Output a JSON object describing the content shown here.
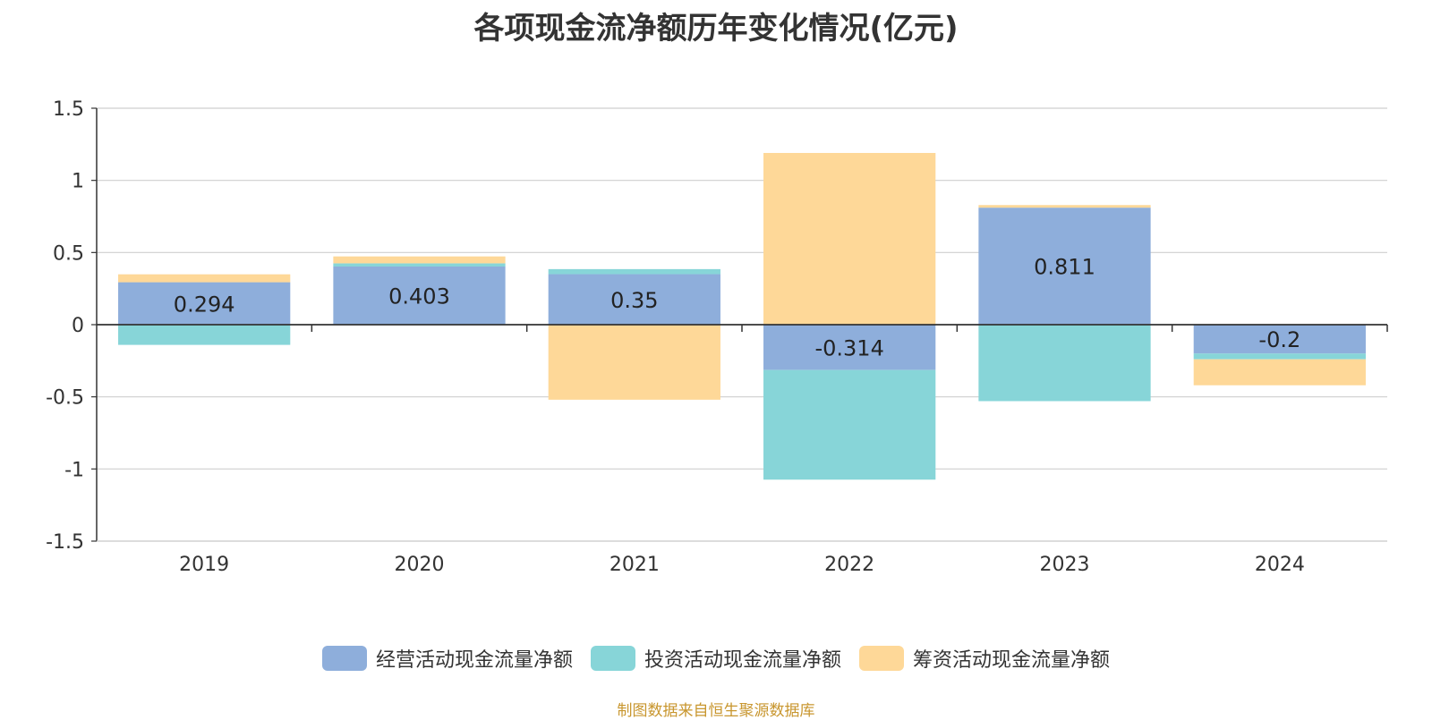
{
  "chart_data": {
    "type": "bar",
    "stacked": true,
    "title": "各项现金流净额历年变化情况(亿元)",
    "categories": [
      "2019",
      "2020",
      "2021",
      "2022",
      "2023",
      "2024"
    ],
    "series": [
      {
        "name": "经营活动现金流量净额",
        "color": "#8eaedb",
        "values": [
          0.294,
          0.403,
          0.35,
          -0.314,
          0.811,
          -0.2
        ]
      },
      {
        "name": "投资活动现金流量净额",
        "color": "#87d5d8",
        "values": [
          -0.14,
          0.022,
          0.035,
          -0.76,
          -0.53,
          -0.04
        ]
      },
      {
        "name": "筹资活动现金流量净额",
        "color": "#fed898",
        "values": [
          0.055,
          0.048,
          -0.52,
          1.19,
          0.018,
          -0.18
        ]
      }
    ],
    "data_labels": [
      "0.294",
      "0.403",
      "0.35",
      "-0.314",
      "0.811",
      "-0.2"
    ],
    "ylim": [
      -1.5,
      1.5
    ],
    "yticks": [
      1.5,
      1,
      0.5,
      0,
      -0.5,
      -1,
      -1.5
    ],
    "ytick_labels": [
      "1.5",
      "1",
      "0.5",
      "0",
      "-0.5",
      "-1",
      "-1.5"
    ],
    "grid": true,
    "legend_position": "bottom"
  },
  "source_text": "制图数据来自恒生聚源数据库"
}
